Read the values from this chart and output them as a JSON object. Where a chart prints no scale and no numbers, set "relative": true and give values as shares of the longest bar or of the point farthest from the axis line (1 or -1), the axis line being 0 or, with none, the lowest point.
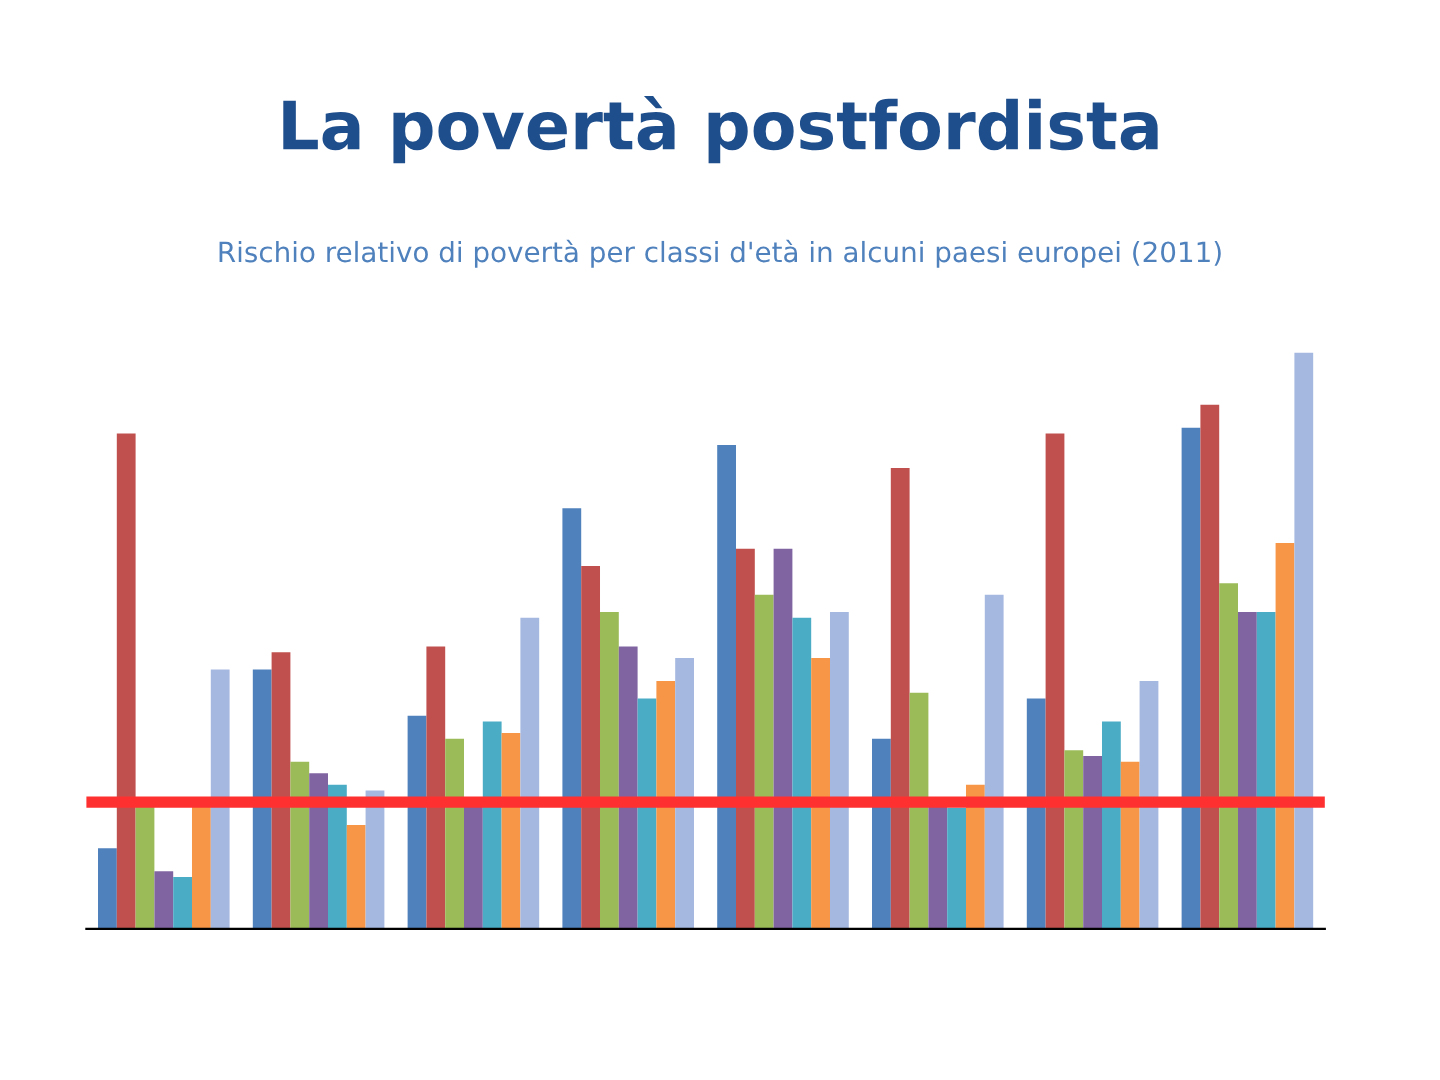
{
  "chart_data": {
    "type": "bar",
    "title": "La povertà postfordista",
    "subtitle": "Rischio relativo di povertà per classi d'età in alcuni paesi europei (2011)",
    "relative": true,
    "categories": [
      null,
      null,
      null,
      null,
      null,
      null,
      null,
      null
    ],
    "series": [
      {
        "color": "#4f81bd",
        "values": [
          0.14,
          0.45,
          0.37,
          0.73,
          0.84,
          0.33,
          0.4,
          0.87
        ]
      },
      {
        "color": "#c0504d",
        "values": [
          0.86,
          0.48,
          0.49,
          0.63,
          0.66,
          0.8,
          0.86,
          0.91
        ]
      },
      {
        "color": "#9bbb59",
        "values": [
          0.22,
          0.29,
          0.33,
          0.55,
          0.58,
          0.41,
          0.31,
          0.6
        ]
      },
      {
        "color": "#8064a2",
        "values": [
          0.1,
          0.27,
          0.22,
          0.49,
          0.66,
          0.22,
          0.3,
          0.55
        ]
      },
      {
        "color": "#4bacc6",
        "values": [
          0.09,
          0.25,
          0.36,
          0.4,
          0.54,
          0.21,
          0.36,
          0.55
        ]
      },
      {
        "color": "#f79646",
        "values": [
          0.22,
          0.18,
          0.34,
          0.43,
          0.47,
          0.25,
          0.29,
          0.67
        ]
      },
      {
        "color": "#a5b8e0",
        "values": [
          0.45,
          0.24,
          0.54,
          0.47,
          0.55,
          0.58,
          0.43,
          1
        ]
      }
    ],
    "ref_lines": [
      {
        "axis": "y",
        "value": 0.22,
        "color": "#ff3030"
      }
    ]
  }
}
